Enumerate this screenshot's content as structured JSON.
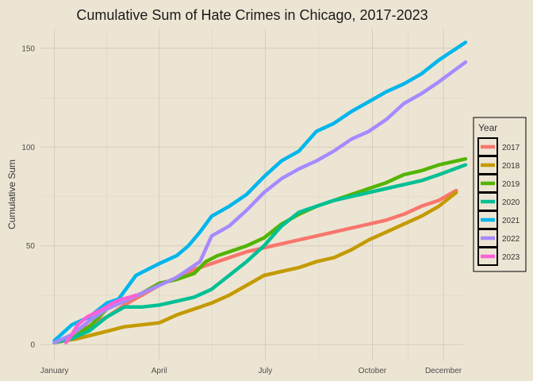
{
  "chart_data": {
    "type": "line",
    "title": "Cumulative Sum of Hate Crimes in Chicago, 2017-2023",
    "xlabel": "",
    "ylabel": "Cumulative Sum",
    "x_unit": "day of year",
    "xlim": [
      -12,
      351
    ],
    "ylim": [
      -8,
      160
    ],
    "x_ticks": [
      {
        "value": 0,
        "label": "January"
      },
      {
        "value": 90,
        "label": "April"
      },
      {
        "value": 181,
        "label": "July"
      },
      {
        "value": 273,
        "label": "October"
      },
      {
        "value": 334,
        "label": "December"
      }
    ],
    "y_ticks": [
      0,
      50,
      100,
      150
    ],
    "grid": true,
    "legend": {
      "title": "Year",
      "position": "right"
    },
    "series": [
      {
        "name": "2017",
        "color": "#F8766D",
        "points": [
          [
            0,
            1
          ],
          [
            10,
            3
          ],
          [
            25,
            8
          ],
          [
            45,
            14
          ],
          [
            60,
            20
          ],
          [
            75,
            25
          ],
          [
            90,
            30
          ],
          [
            105,
            34
          ],
          [
            120,
            38
          ],
          [
            135,
            41
          ],
          [
            150,
            44
          ],
          [
            165,
            47
          ],
          [
            180,
            49
          ],
          [
            195,
            51
          ],
          [
            210,
            53
          ],
          [
            225,
            55
          ],
          [
            240,
            57
          ],
          [
            255,
            59
          ],
          [
            270,
            61
          ],
          [
            285,
            63
          ],
          [
            300,
            66
          ],
          [
            315,
            70
          ],
          [
            330,
            73
          ],
          [
            345,
            78
          ]
        ]
      },
      {
        "name": "2018",
        "color": "#C49A00",
        "points": [
          [
            0,
            1
          ],
          [
            20,
            3
          ],
          [
            40,
            6
          ],
          [
            60,
            9
          ],
          [
            75,
            10
          ],
          [
            90,
            11
          ],
          [
            105,
            15
          ],
          [
            120,
            18
          ],
          [
            135,
            21
          ],
          [
            150,
            25
          ],
          [
            165,
            30
          ],
          [
            180,
            35
          ],
          [
            195,
            37
          ],
          [
            210,
            39
          ],
          [
            225,
            42
          ],
          [
            240,
            44
          ],
          [
            255,
            48
          ],
          [
            270,
            53
          ],
          [
            285,
            57
          ],
          [
            300,
            61
          ],
          [
            315,
            65
          ],
          [
            330,
            70
          ],
          [
            345,
            77
          ]
        ]
      },
      {
        "name": "2019",
        "color": "#53B400",
        "points": [
          [
            0,
            1
          ],
          [
            15,
            4
          ],
          [
            30,
            9
          ],
          [
            45,
            18
          ],
          [
            60,
            22
          ],
          [
            75,
            26
          ],
          [
            90,
            31
          ],
          [
            105,
            33
          ],
          [
            120,
            36
          ],
          [
            130,
            42
          ],
          [
            140,
            45
          ],
          [
            150,
            47
          ],
          [
            165,
            50
          ],
          [
            180,
            54
          ],
          [
            195,
            61
          ],
          [
            210,
            66
          ],
          [
            225,
            70
          ],
          [
            240,
            73
          ],
          [
            255,
            76
          ],
          [
            270,
            79
          ],
          [
            285,
            82
          ],
          [
            300,
            86
          ],
          [
            315,
            88
          ],
          [
            330,
            91
          ],
          [
            353,
            94
          ]
        ]
      },
      {
        "name": "2020",
        "color": "#00C094",
        "points": [
          [
            0,
            1
          ],
          [
            15,
            3
          ],
          [
            30,
            7
          ],
          [
            45,
            14
          ],
          [
            60,
            19
          ],
          [
            75,
            19
          ],
          [
            90,
            20
          ],
          [
            105,
            22
          ],
          [
            120,
            24
          ],
          [
            135,
            28
          ],
          [
            150,
            35
          ],
          [
            165,
            42
          ],
          [
            180,
            50
          ],
          [
            195,
            60
          ],
          [
            210,
            67
          ],
          [
            225,
            70
          ],
          [
            240,
            73
          ],
          [
            255,
            75
          ],
          [
            270,
            77
          ],
          [
            285,
            79
          ],
          [
            300,
            81
          ],
          [
            315,
            83
          ],
          [
            330,
            86
          ],
          [
            353,
            91
          ]
        ]
      },
      {
        "name": "2021",
        "color": "#00B6EB",
        "points": [
          [
            0,
            2
          ],
          [
            15,
            10
          ],
          [
            30,
            14
          ],
          [
            45,
            21
          ],
          [
            55,
            23
          ],
          [
            70,
            35
          ],
          [
            80,
            38
          ],
          [
            90,
            41
          ],
          [
            105,
            45
          ],
          [
            115,
            50
          ],
          [
            125,
            57
          ],
          [
            135,
            65
          ],
          [
            150,
            70
          ],
          [
            165,
            76
          ],
          [
            180,
            85
          ],
          [
            195,
            93
          ],
          [
            210,
            98
          ],
          [
            225,
            108
          ],
          [
            240,
            112
          ],
          [
            255,
            118
          ],
          [
            270,
            123
          ],
          [
            285,
            128
          ],
          [
            300,
            132
          ],
          [
            315,
            137
          ],
          [
            330,
            144
          ],
          [
            353,
            153
          ]
        ]
      },
      {
        "name": "2022",
        "color": "#A58AFF",
        "points": [
          [
            0,
            1
          ],
          [
            15,
            5
          ],
          [
            30,
            12
          ],
          [
            45,
            18
          ],
          [
            60,
            22
          ],
          [
            75,
            26
          ],
          [
            90,
            30
          ],
          [
            105,
            34
          ],
          [
            115,
            38
          ],
          [
            125,
            42
          ],
          [
            135,
            55
          ],
          [
            150,
            60
          ],
          [
            165,
            68
          ],
          [
            180,
            77
          ],
          [
            195,
            84
          ],
          [
            210,
            89
          ],
          [
            225,
            93
          ],
          [
            240,
            98
          ],
          [
            255,
            104
          ],
          [
            270,
            108
          ],
          [
            285,
            114
          ],
          [
            300,
            122
          ],
          [
            315,
            127
          ],
          [
            330,
            133
          ],
          [
            353,
            143
          ]
        ]
      },
      {
        "name": "2023",
        "color": "#FB61D7",
        "points": [
          [
            10,
            1
          ],
          [
            15,
            5
          ],
          [
            20,
            10
          ],
          [
            28,
            14
          ],
          [
            35,
            16
          ],
          [
            42,
            18
          ],
          [
            50,
            21
          ],
          [
            58,
            23
          ],
          [
            65,
            24
          ],
          [
            70,
            25
          ]
        ]
      }
    ]
  }
}
